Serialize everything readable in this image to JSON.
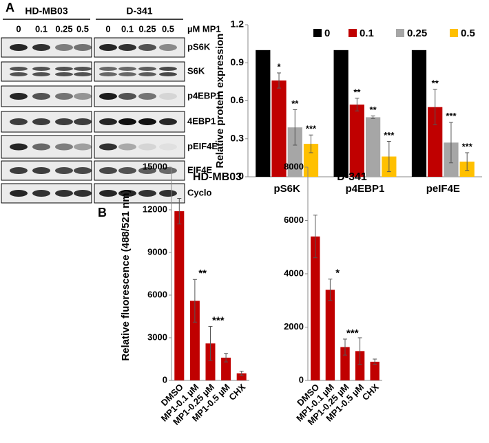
{
  "panel_labels": [
    "A",
    "B"
  ],
  "blot": {
    "cell_lines": [
      "HD-MB03",
      "D-341"
    ],
    "doses": [
      "0",
      "0.1",
      "0.25",
      "0.5"
    ],
    "dose_unit": "µM MP1",
    "proteins": [
      "pS6K",
      "S6K",
      "p4EBP1",
      "4EBP1",
      "pEIF4E",
      "EIF4E",
      "Cyclo"
    ]
  },
  "chart_data": [
    {
      "type": "bar",
      "ylabel": "Relative protein expression",
      "categories": [
        "pS6K",
        "p4EBP1",
        "peIF4E"
      ],
      "series": [
        {
          "name": "0",
          "color": "#000000",
          "values": [
            1,
            1,
            1
          ]
        },
        {
          "name": "0.1",
          "color": "#c00000",
          "values": [
            0.76,
            0.57,
            0.55
          ],
          "errors": [
            0.06,
            0.05,
            0.14
          ],
          "stars": [
            "*",
            "**",
            "**"
          ]
        },
        {
          "name": "0.25",
          "color": "#a6a6a6",
          "values": [
            0.39,
            0.47,
            0.27
          ],
          "errors": [
            0.14,
            0.01,
            0.16
          ],
          "stars": [
            "**",
            "**",
            "***"
          ]
        },
        {
          "name": "0.5",
          "color": "#ffc000",
          "values": [
            0.26,
            0.16,
            0.12
          ],
          "errors": [
            0.07,
            0.12,
            0.07
          ],
          "stars": [
            "***",
            "***",
            "***"
          ]
        }
      ],
      "ylim": [
        0,
        1.2
      ],
      "yticks": [
        0,
        0.3,
        0.6,
        0.9,
        1.2
      ],
      "legend": "top"
    },
    {
      "type": "bar",
      "title": "HD-MB03",
      "ylabel": "Relative fluorescence (488/521 nm)",
      "categories": [
        "DMSO",
        "MP1-0.1 µM",
        "MP1-0.25 µM",
        "MP1-0.5 µM",
        "CHX"
      ],
      "values": [
        11900,
        5600,
        2600,
        1600,
        500
      ],
      "errors": [
        900,
        1500,
        1200,
        300,
        150
      ],
      "stars": [
        null,
        "**",
        "***",
        null,
        null
      ],
      "color": "#c00000",
      "ylim": [
        0,
        15000
      ],
      "yticks": [
        0,
        3000,
        6000,
        9000,
        12000,
        15000
      ]
    },
    {
      "type": "bar",
      "title": "D-341",
      "categories": [
        "DMSO",
        "MP1-0.1 µM",
        "MP1-0.25 µM",
        "MP1-0.5 µM",
        "CHX"
      ],
      "values": [
        5400,
        3400,
        1250,
        1100,
        700
      ],
      "errors": [
        800,
        400,
        300,
        500,
        100
      ],
      "stars": [
        null,
        "*",
        "***",
        null,
        null
      ],
      "color": "#c00000",
      "ylim": [
        0,
        8000
      ],
      "yticks": [
        0,
        2000,
        4000,
        6000,
        8000
      ]
    }
  ]
}
